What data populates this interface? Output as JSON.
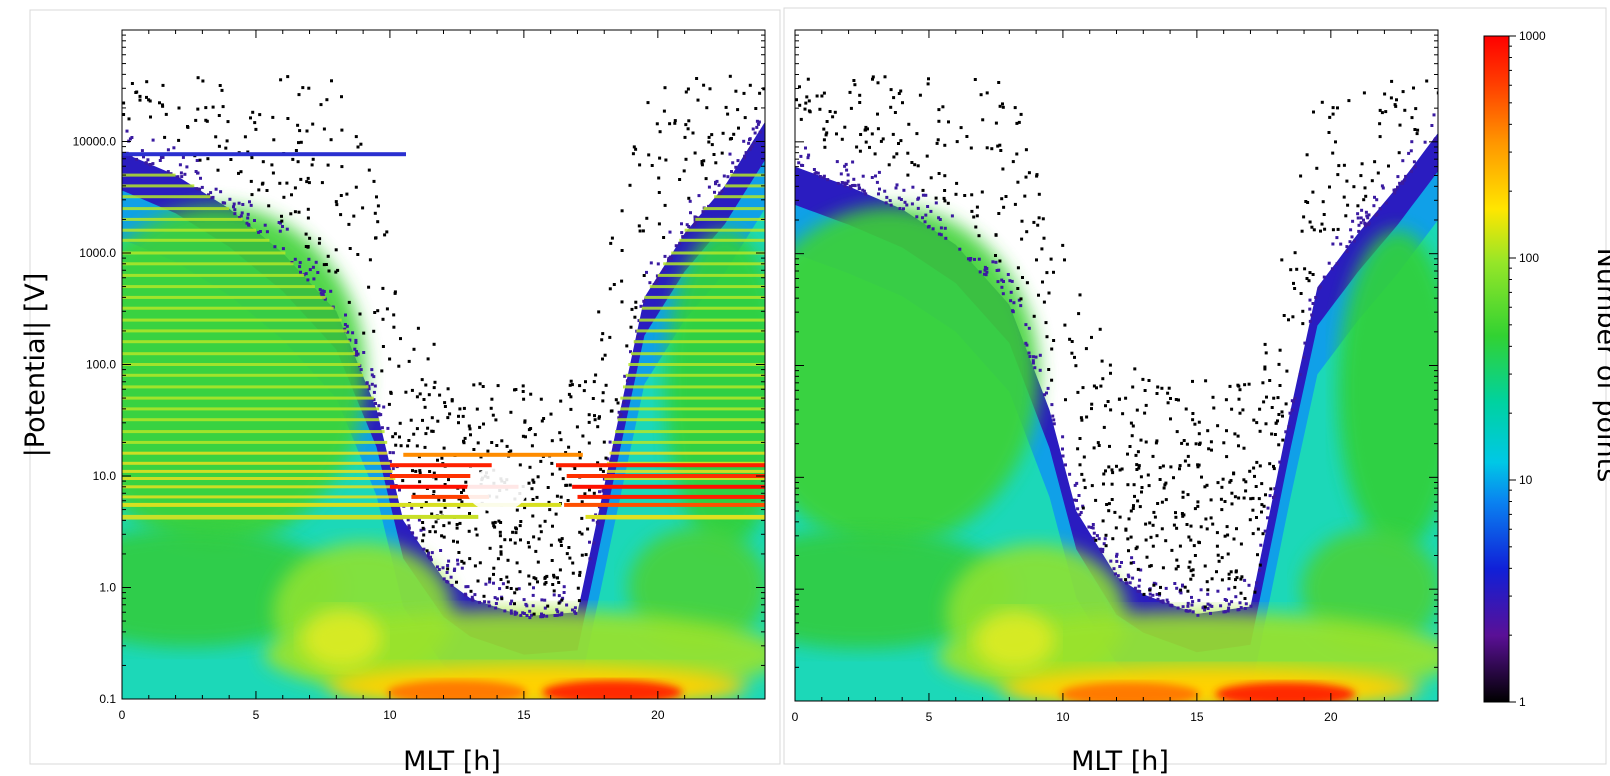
{
  "chart_data": [
    {
      "type": "heatmap",
      "panel": "left",
      "xlabel": "MLT [h]",
      "ylabel": "|Potential| [V]",
      "x_ticks": [
        0,
        5,
        10,
        15,
        20
      ],
      "x_tick_labels": [
        "0",
        "5",
        "10",
        "15",
        "20"
      ],
      "xlim": [
        0,
        24
      ],
      "y_scale": "log",
      "ylim": [
        0.1,
        100000
      ],
      "y_ticks": [
        0.1,
        1,
        10,
        100,
        1000,
        10000
      ],
      "y_tick_labels": [
        "0.1",
        "1.0",
        "10.0",
        "100.0",
        "1000.0",
        "10000.0"
      ],
      "has_discrete_level_stripes": true,
      "valley_floor_potential_min": [
        [
          0,
          0.1
        ],
        [
          5,
          0.1
        ],
        [
          10,
          0.1
        ],
        [
          15,
          0.1
        ],
        [
          20,
          0.1
        ],
        [
          24,
          0.1
        ]
      ],
      "envelope_upper_potential": [
        [
          0,
          8000
        ],
        [
          2,
          5000
        ],
        [
          4,
          2500
        ],
        [
          6,
          1000
        ],
        [
          8,
          300
        ],
        [
          9.5,
          40
        ],
        [
          10.5,
          4
        ],
        [
          12,
          1.2
        ],
        [
          13,
          0.8
        ],
        [
          15,
          0.55
        ],
        [
          17,
          0.6
        ],
        [
          18.5,
          30
        ],
        [
          19.5,
          400
        ],
        [
          21,
          1500
        ],
        [
          22.5,
          4000
        ],
        [
          24,
          15000
        ]
      ],
      "hot_spot_mlt_range": [
        11,
        20
      ],
      "hot_spot_potential_range": [
        0.1,
        0.2
      ]
    },
    {
      "type": "heatmap",
      "panel": "right",
      "xlabel": "MLT [h]",
      "x_ticks": [
        0,
        5,
        10,
        15,
        20
      ],
      "x_tick_labels": [
        "0",
        "5",
        "10",
        "15",
        "20"
      ],
      "xlim": [
        0,
        24
      ],
      "y_scale": "log",
      "ylim": [
        0.1,
        100000
      ],
      "has_discrete_level_stripes": false,
      "envelope_upper_potential": [
        [
          0,
          6000
        ],
        [
          2,
          4000
        ],
        [
          4,
          2500
        ],
        [
          6,
          1200
        ],
        [
          8,
          350
        ],
        [
          9.5,
          40
        ],
        [
          10.5,
          5
        ],
        [
          12,
          1.3
        ],
        [
          13,
          0.9
        ],
        [
          15,
          0.6
        ],
        [
          17,
          0.7
        ],
        [
          18.5,
          40
        ],
        [
          19.5,
          500
        ],
        [
          21,
          1500
        ],
        [
          22.5,
          4000
        ],
        [
          24,
          12000
        ]
      ],
      "hot_spot_mlt_range": [
        11,
        20
      ],
      "hot_spot_potential_range": [
        0.1,
        0.2
      ]
    }
  ],
  "colorbar": {
    "title": "Number of points",
    "scale": "log",
    "range": [
      1,
      1000
    ],
    "ticks": [
      1,
      10,
      100,
      1000
    ],
    "tick_labels": [
      "1",
      "10",
      "100",
      "1000"
    ],
    "colors": [
      "#000000",
      "#5a1096",
      "#1020d8",
      "#00b4e6",
      "#00d2a0",
      "#32d232",
      "#96e628",
      "#ffe600",
      "#ff8c00",
      "#ff1e00",
      "#ff0000"
    ]
  }
}
